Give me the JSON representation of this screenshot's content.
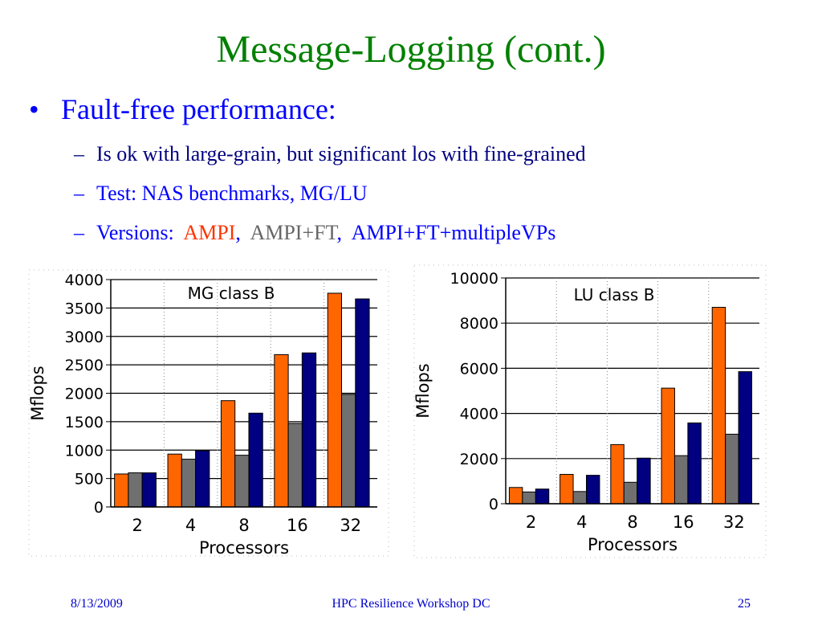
{
  "slide": {
    "title": "Message-Logging (cont.)",
    "bullet_marker": "•",
    "dash_marker": "–",
    "bullet": "Fault-free performance:",
    "sub1": "Is ok with large-grain, but significant los with fine-grained",
    "sub2": "Test: NAS benchmarks, MG/LU",
    "sub3_prefix": "Versions:",
    "versions": [
      "AMPI",
      "AMPI+FT",
      "AMPI+FT+multipleVPs"
    ],
    "version_sep": ","
  },
  "footer": {
    "date": "8/13/2009",
    "center": "HPC Resilience Workshop DC",
    "page": "25"
  },
  "colors": {
    "title": "#008000",
    "bullet": "#0000ff",
    "AMPI": "#ff6600",
    "AMPI+FT": "#707070",
    "AMPI+FT+multipleVPs": "#000080"
  },
  "chart_data": [
    {
      "type": "bar",
      "annotation": "MG class B",
      "xlabel": "Processors",
      "ylabel": "Mflops",
      "categories": [
        "2",
        "4",
        "8",
        "16",
        "32"
      ],
      "ylim": [
        0,
        4000
      ],
      "yticks": [
        0,
        500,
        1000,
        1500,
        2000,
        2500,
        3000,
        3500,
        4000
      ],
      "grid": true,
      "legend": "none",
      "series": [
        {
          "color": "#ff6600",
          "values": [
            580,
            930,
            1870,
            2680,
            3760
          ]
        },
        {
          "color": "#707070",
          "values": [
            600,
            840,
            910,
            1470,
            1980
          ]
        },
        {
          "color": "#000080",
          "values": [
            600,
            990,
            1650,
            2710,
            3660
          ]
        }
      ]
    },
    {
      "type": "bar",
      "annotation": "LU class B",
      "xlabel": "Processors",
      "ylabel": "Mflops",
      "categories": [
        "2",
        "4",
        "8",
        "16",
        "32"
      ],
      "ylim": [
        0,
        10000
      ],
      "yticks": [
        0,
        2000,
        4000,
        6000,
        8000,
        10000
      ],
      "grid": true,
      "legend": "none",
      "series": [
        {
          "color": "#ff6600",
          "values": [
            720,
            1300,
            2620,
            5120,
            8700
          ]
        },
        {
          "color": "#707070",
          "values": [
            520,
            540,
            950,
            2130,
            3080
          ]
        },
        {
          "color": "#000080",
          "values": [
            650,
            1260,
            2020,
            3580,
            5850
          ]
        }
      ]
    }
  ]
}
